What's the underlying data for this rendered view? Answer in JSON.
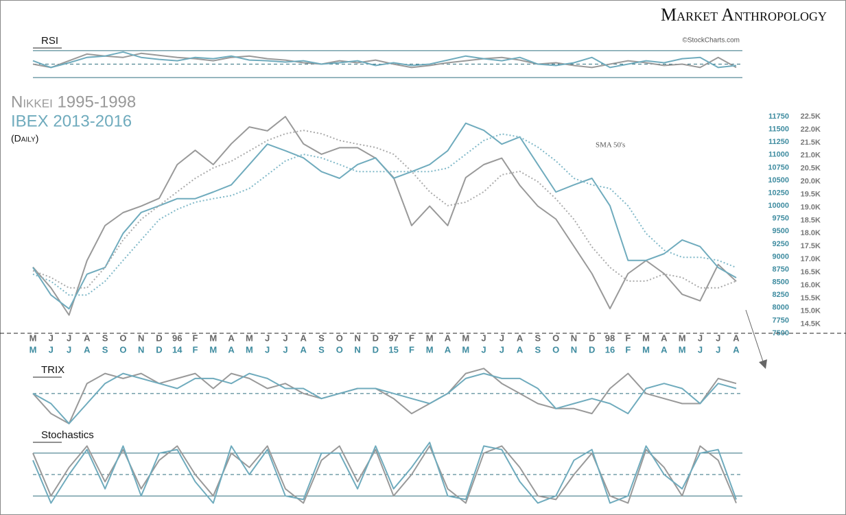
{
  "header": {
    "brand": "Market Anthropology",
    "source": "©StockCharts.com"
  },
  "chart_data": [
    {
      "type": "line",
      "title": "RSI",
      "ylim": [
        20,
        80
      ],
      "levels": [
        70,
        50,
        30
      ],
      "series": [
        {
          "color": "#999999",
          "values": [
            50,
            45,
            55,
            65,
            62,
            60,
            66,
            63,
            60,
            58,
            55,
            60,
            62,
            58,
            56,
            52,
            50,
            55,
            52,
            56,
            50,
            45,
            48,
            52,
            55,
            58,
            60,
            56,
            50,
            52,
            48,
            45,
            50,
            55,
            52,
            48,
            50,
            45,
            60,
            45
          ]
        },
        {
          "color": "#6fabbd",
          "values": [
            55,
            45,
            52,
            60,
            62,
            68,
            60,
            57,
            55,
            60,
            58,
            62,
            56,
            55,
            53,
            55,
            50,
            52,
            55,
            48,
            52,
            48,
            50,
            56,
            62,
            58,
            55,
            60,
            50,
            48,
            52,
            60,
            45,
            50,
            55,
            52,
            58,
            60,
            45,
            48
          ]
        }
      ]
    },
    {
      "type": "line",
      "subtitle": "(Daily)",
      "annotation": "SMA 50's",
      "categories": [
        "M",
        "J",
        "J",
        "A",
        "S",
        "O",
        "N",
        "D",
        "96",
        "F",
        "M",
        "A",
        "M",
        "J",
        "J",
        "A",
        "S",
        "O",
        "N",
        "D",
        "97",
        "F",
        "M",
        "A",
        "M",
        "J",
        "J",
        "A",
        "S",
        "O",
        "N",
        "D",
        "98",
        "F",
        "M",
        "A",
        "M",
        "J",
        "J",
        "A"
      ],
      "categories2": [
        "M",
        "J",
        "J",
        "A",
        "S",
        "O",
        "N",
        "D",
        "14",
        "F",
        "M",
        "A",
        "M",
        "J",
        "J",
        "A",
        "S",
        "O",
        "N",
        "D",
        "15",
        "F",
        "M",
        "A",
        "M",
        "J",
        "J",
        "A",
        "S",
        "O",
        "N",
        "D",
        "16",
        "F",
        "M",
        "A",
        "M",
        "J",
        "J",
        "A"
      ],
      "ylim": [
        7500,
        11750
      ],
      "yticks": [
        11750,
        11500,
        11250,
        11000,
        10750,
        10500,
        10250,
        10000,
        9750,
        9500,
        9250,
        9000,
        8750,
        8500,
        8250,
        8000,
        7750,
        7500
      ],
      "y2lim": [
        14150,
        22500
      ],
      "y2ticks": [
        {
          "value": 22500,
          "label": "22.5K"
        },
        {
          "value": 22000,
          "label": "22.0K"
        },
        {
          "value": 21500,
          "label": "21.5K"
        },
        {
          "value": 21000,
          "label": "21.0K"
        },
        {
          "value": 20500,
          "label": "20.5K"
        },
        {
          "value": 20000,
          "label": "20.0K"
        },
        {
          "value": 19500,
          "label": "19.5K"
        },
        {
          "value": 19000,
          "label": "19.0K"
        },
        {
          "value": 18500,
          "label": "18.5K"
        },
        {
          "value": 18000,
          "label": "18.0K"
        },
        {
          "value": 17500,
          "label": "17.5K"
        },
        {
          "value": 17000,
          "label": "17.0K"
        },
        {
          "value": 16500,
          "label": "16.5K"
        },
        {
          "value": 16000,
          "label": "16.0K"
        },
        {
          "value": 15500,
          "label": "15.5K"
        },
        {
          "value": 15000,
          "label": "15.0K"
        },
        {
          "value": 14500,
          "label": "14.5K"
        }
      ],
      "series": [
        {
          "name": "Nikkei 1995-1998",
          "color": "#999999",
          "axis": "y2",
          "values": [
            16700,
            15900,
            14850,
            16950,
            18300,
            18800,
            19050,
            19350,
            20650,
            21200,
            20650,
            21450,
            22100,
            21950,
            22500,
            21450,
            21050,
            21300,
            21300,
            20900,
            20150,
            18300,
            19050,
            18300,
            20150,
            20650,
            20900,
            19850,
            19050,
            18550,
            17500,
            16450,
            15100,
            16450,
            16950,
            16450,
            15650,
            15400,
            16800,
            16150
          ]
        },
        {
          "name": "IBEX 2013-2016",
          "color": "#6fabbd",
          "values": [
            8790,
            8250,
            7980,
            8660,
            8790,
            9460,
            9870,
            10000,
            10140,
            10140,
            10270,
            10410,
            10810,
            11210,
            11080,
            10940,
            10670,
            10540,
            10810,
            10940,
            10540,
            10670,
            10810,
            11080,
            11620,
            11480,
            11210,
            11350,
            10810,
            10270,
            10410,
            10540,
            10000,
            8930,
            8930,
            9060,
            9330,
            9200,
            8790,
            8590
          ]
        },
        {
          "color": "#aaaaaa",
          "axis": "y2",
          "dashed": true,
          "values": [
            16560,
            16300,
            15900,
            15900,
            16690,
            17750,
            18540,
            19070,
            19600,
            20120,
            20520,
            20780,
            21180,
            21580,
            21840,
            21970,
            21840,
            21580,
            21440,
            21310,
            21050,
            20390,
            19600,
            19070,
            19200,
            19600,
            20260,
            20390,
            19990,
            19330,
            18540,
            17480,
            16690,
            16160,
            16160,
            16430,
            16300,
            15900,
            15900,
            16160
          ]
        },
        {
          "color": "#7fb8c8",
          "dashed": true,
          "values": [
            8660,
            8520,
            8250,
            8250,
            8520,
            8930,
            9330,
            9730,
            9930,
            10070,
            10140,
            10200,
            10340,
            10610,
            10880,
            11010,
            10940,
            10810,
            10670,
            10670,
            10670,
            10670,
            10670,
            10740,
            11010,
            11280,
            11410,
            11350,
            11150,
            10880,
            10540,
            10410,
            10340,
            10000,
            9460,
            9130,
            8990,
            8990,
            8930,
            8790
          ]
        }
      ]
    },
    {
      "type": "line",
      "title": "TRIX",
      "ylim": [
        -0.35,
        0.3
      ],
      "levels": [
        0
      ],
      "series": [
        {
          "color": "#999999",
          "values": [
            0,
            -0.2,
            -0.3,
            0.1,
            0.2,
            0.15,
            0.2,
            0.1,
            0.15,
            0.2,
            0.05,
            0.2,
            0.15,
            0.05,
            0.1,
            0,
            -0.05,
            0,
            0.05,
            0.05,
            -0.05,
            -0.2,
            -0.1,
            0,
            0.2,
            0.25,
            0.1,
            0,
            -0.1,
            -0.15,
            -0.15,
            -0.2,
            0.05,
            0.2,
            0,
            -0.05,
            -0.1,
            -0.1,
            0.15,
            0.1
          ]
        },
        {
          "color": "#6fabbd",
          "values": [
            0,
            -0.1,
            -0.3,
            -0.1,
            0.1,
            0.2,
            0.15,
            0.1,
            0.05,
            0.15,
            0.15,
            0.1,
            0.2,
            0.15,
            0.05,
            0.05,
            -0.05,
            0,
            0.05,
            0.05,
            0,
            -0.05,
            -0.1,
            0,
            0.15,
            0.2,
            0.15,
            0.15,
            0.05,
            -0.15,
            -0.1,
            -0.05,
            -0.1,
            -0.2,
            0.05,
            0.1,
            0.05,
            -0.1,
            0.1,
            0.05
          ]
        }
      ]
    },
    {
      "type": "line",
      "title": "Stochastics",
      "ylim": [
        0,
        100
      ],
      "levels": [
        80,
        50,
        20
      ],
      "series": [
        {
          "color": "#999999",
          "values": [
            80,
            20,
            60,
            90,
            40,
            85,
            30,
            70,
            90,
            50,
            20,
            80,
            60,
            90,
            30,
            10,
            70,
            90,
            40,
            85,
            20,
            50,
            90,
            30,
            10,
            80,
            90,
            60,
            20,
            15,
            50,
            80,
            20,
            10,
            85,
            60,
            20,
            90,
            70,
            10
          ]
        },
        {
          "color": "#6fabbd",
          "values": [
            70,
            10,
            50,
            85,
            30,
            90,
            20,
            80,
            85,
            40,
            10,
            90,
            50,
            85,
            20,
            15,
            80,
            80,
            30,
            90,
            30,
            60,
            95,
            20,
            15,
            90,
            85,
            40,
            10,
            20,
            70,
            85,
            10,
            20,
            90,
            50,
            30,
            80,
            85,
            15
          ]
        }
      ]
    }
  ]
}
